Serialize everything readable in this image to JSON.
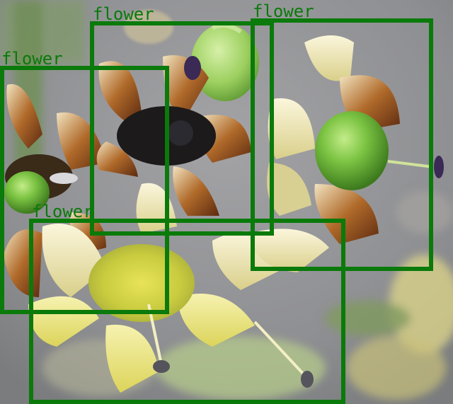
{
  "image": {
    "subject": "flower",
    "colors": {
      "box": "#0a7a0a",
      "background": "#8d8e92",
      "petal_yellow": "#e9e27a",
      "petal_cream": "#f3efd2",
      "stripe_brown": "#8a4a1e",
      "fruit_green": "#6fb83a",
      "anther_purple": "#3a2a55"
    }
  },
  "detections": [
    {
      "label": "flower"
    },
    {
      "label": "flower"
    },
    {
      "label": "flower"
    },
    {
      "label": "flower"
    }
  ]
}
